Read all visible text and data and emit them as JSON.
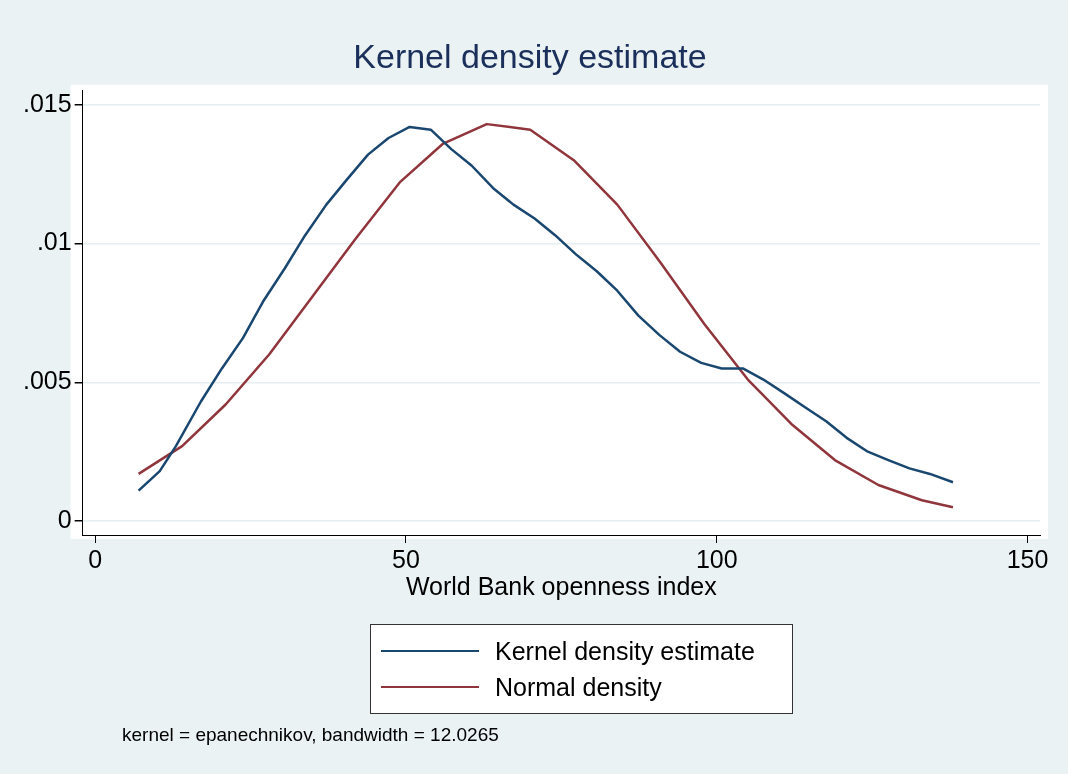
{
  "chart_data": {
    "type": "line",
    "title": "Kernel density estimate",
    "xlabel": "World Bank openness index",
    "series": [
      {
        "name": "Kernel density estimate",
        "color": "#1a476f",
        "x": [
          7,
          10.4,
          13,
          17,
          20.4,
          23.8,
          27,
          30.5,
          33.8,
          37.2,
          40.5,
          43.9,
          47.2,
          50.6,
          54,
          57.3,
          60.6,
          64,
          67.3,
          70.7,
          74,
          77.4,
          80.7,
          84,
          87.4,
          90.8,
          94.1,
          97.5,
          100.8,
          104.2,
          107.5,
          110.9,
          114.2,
          117.6,
          120.9,
          124.3,
          127.6,
          131,
          134.3,
          138
        ],
        "values": [
          0.0011,
          0.0018,
          0.0027,
          0.0043,
          0.0055,
          0.0066,
          0.0079,
          0.0091,
          0.0103,
          0.0114,
          0.0123,
          0.0132,
          0.0138,
          0.0142,
          0.0141,
          0.0134,
          0.0128,
          0.012,
          0.0114,
          0.0109,
          0.0103,
          0.0096,
          0.009,
          0.0083,
          0.0074,
          0.0067,
          0.0061,
          0.0057,
          0.0055,
          0.0055,
          0.0051,
          0.0046,
          0.0041,
          0.0036,
          0.003,
          0.0025,
          0.0022,
          0.0019,
          0.0017,
          0.0014
        ]
      },
      {
        "name": "Normal density",
        "color": "#90353b",
        "x": [
          7,
          14,
          21,
          28,
          35,
          42,
          49,
          56,
          63,
          70,
          77,
          84,
          91,
          98,
          105,
          112,
          119,
          126,
          133,
          138
        ],
        "values": [
          0.0017,
          0.0027,
          0.0042,
          0.006,
          0.0081,
          0.0102,
          0.0122,
          0.0136,
          0.0143,
          0.0141,
          0.013,
          0.0114,
          0.0093,
          0.0071,
          0.0051,
          0.0035,
          0.0022,
          0.0013,
          0.00075,
          0.0005
        ]
      }
    ],
    "xlim": [
      -2,
      152
    ],
    "xticks": [
      0,
      50,
      100,
      150
    ],
    "ylim": [
      -0.0005,
      0.0155
    ],
    "yticks": [
      0,
      {
        "value": 0.005,
        "label": ".005"
      },
      {
        "value": 0.01,
        "label": ".01"
      },
      {
        "value": 0.015,
        "label": ".015"
      }
    ],
    "grid": "y",
    "legend": "bottom",
    "annotations": [
      "kernel = epanechnikov, bandwidth = 12.0265"
    ]
  }
}
